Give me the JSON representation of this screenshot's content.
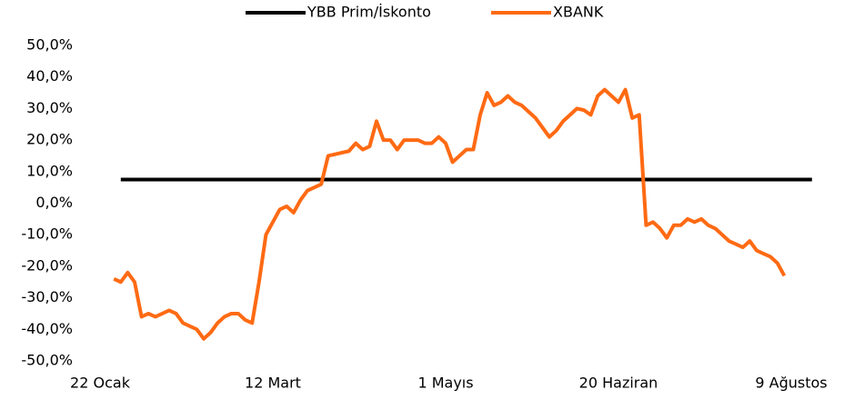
{
  "chart_data": {
    "type": "line",
    "categories": [
      "22 Ocak",
      null,
      null,
      null,
      null,
      null,
      null,
      null,
      null,
      null,
      null,
      null,
      null,
      null,
      null,
      null,
      null,
      null,
      null,
      null,
      null,
      null,
      null,
      null,
      null,
      "12 Mart",
      null,
      null,
      null,
      null,
      null,
      null,
      null,
      null,
      null,
      null,
      null,
      null,
      null,
      null,
      null,
      null,
      null,
      null,
      null,
      null,
      null,
      null,
      null,
      null,
      "1 Mayıs",
      null,
      null,
      null,
      null,
      null,
      null,
      null,
      null,
      null,
      null,
      null,
      null,
      null,
      null,
      null,
      null,
      null,
      null,
      null,
      null,
      null,
      null,
      null,
      null,
      "20 Haziran",
      null,
      null,
      null,
      null,
      null,
      null,
      null,
      null,
      null,
      null,
      null,
      null,
      null,
      null,
      null,
      null,
      null,
      null,
      null,
      null,
      null,
      null,
      null,
      null,
      "9 Ağustos",
      null,
      null,
      null
    ],
    "series": [
      {
        "name": "YBB Prim/İskonto",
        "color": "#000000",
        "values": [
          null,
          null,
          null,
          7.5,
          7.5,
          7.5,
          7.5,
          7.5,
          7.5,
          7.5,
          7.5,
          7.5,
          7.5,
          7.5,
          7.5,
          7.5,
          7.5,
          7.5,
          7.5,
          7.5,
          7.5,
          7.5,
          7.5,
          7.5,
          7.5,
          7.5,
          7.5,
          7.5,
          7.5,
          7.5,
          7.5,
          7.5,
          7.5,
          7.5,
          7.5,
          7.5,
          7.5,
          7.5,
          7.5,
          7.5,
          7.5,
          7.5,
          7.5,
          7.5,
          7.5,
          7.5,
          7.5,
          7.5,
          7.5,
          7.5,
          7.5,
          7.5,
          7.5,
          7.5,
          7.5,
          7.5,
          7.5,
          7.5,
          7.5,
          7.5,
          7.5,
          7.5,
          7.5,
          7.5,
          7.5,
          7.5,
          7.5,
          7.5,
          7.5,
          7.5,
          7.5,
          7.5,
          7.5,
          7.5,
          7.5,
          7.5,
          7.5,
          7.5,
          7.5,
          7.5,
          7.5,
          7.5,
          7.5,
          7.5,
          7.5,
          7.5,
          7.5,
          7.5,
          7.5,
          7.5,
          7.5,
          7.5,
          7.5,
          7.5,
          7.5,
          7.5,
          7.5,
          7.5,
          7.5,
          7.5,
          7.5,
          7.5,
          7.5,
          7.5
        ]
      },
      {
        "name": "XBANK",
        "color": "#ff6a13",
        "values": [
          null,
          null,
          -24,
          -25,
          -22,
          -25,
          -36,
          -35,
          -36,
          -35,
          -34,
          -35,
          -38,
          -39,
          -40,
          -43,
          -41,
          -38,
          -36,
          -35,
          -35,
          -37,
          -38,
          -25,
          -10,
          -6,
          -2,
          -1,
          -3,
          1,
          4,
          5,
          6,
          15,
          15.5,
          16,
          16.5,
          19,
          17,
          18,
          26,
          20,
          20,
          17,
          20,
          20,
          20,
          19,
          19,
          21,
          19,
          13,
          15,
          17,
          17,
          28,
          35,
          31,
          32,
          34,
          32,
          31,
          29,
          27,
          24,
          21,
          23,
          26,
          28,
          30,
          29.5,
          28,
          34,
          36,
          34,
          32,
          36,
          27,
          28,
          -7,
          -6,
          -8,
          -11,
          -7,
          -7,
          -5,
          -6,
          -5,
          -7,
          -8,
          -10,
          -12,
          -13,
          -14,
          -12,
          -15,
          -16,
          -17,
          -19,
          -23,
          null,
          null,
          null,
          null
        ]
      }
    ],
    "ylim": [
      -50,
      50
    ],
    "yticks": [
      {
        "value": -50,
        "label": "-50,0%"
      },
      {
        "value": -40,
        "label": "-40,0%"
      },
      {
        "value": -30,
        "label": "-30,0%"
      },
      {
        "value": -20,
        "label": "-20,0%"
      },
      {
        "value": -10,
        "label": "-10,0%"
      },
      {
        "value": 0,
        "label": "0,0%"
      },
      {
        "value": 10,
        "label": "10,0%"
      },
      {
        "value": 20,
        "label": "20,0%"
      },
      {
        "value": 30,
        "label": "30,0%"
      },
      {
        "value": 40,
        "label": "40,0%"
      },
      {
        "value": 50,
        "label": "50,0%"
      }
    ],
    "grid": false,
    "legend": "top"
  }
}
